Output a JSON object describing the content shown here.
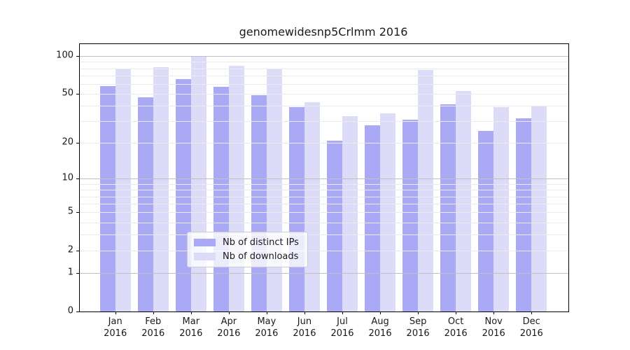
{
  "title": "genomewidesnp5Crlmm 2016",
  "legend": {
    "items": [
      {
        "label": "Nb of distinct IPs",
        "color": "#a9a9f5"
      },
      {
        "label": "Nb of downloads",
        "color": "#dcdcf8"
      }
    ]
  },
  "chart_data": {
    "type": "bar",
    "title": "genomewidesnp5Crlmm 2016",
    "x": {
      "months": [
        "Jan",
        "Feb",
        "Mar",
        "Apr",
        "May",
        "Jun",
        "Jul",
        "Aug",
        "Sep",
        "Oct",
        "Nov",
        "Dec"
      ],
      "year": "2016"
    },
    "series": [
      {
        "name": "Nb of distinct IPs",
        "color": "#a9a9f5",
        "values": [
          58,
          47,
          66,
          57,
          49,
          39,
          21,
          28,
          31,
          41,
          25,
          32
        ]
      },
      {
        "name": "Nb of downloads",
        "color": "#dcdcf8",
        "values": [
          79,
          82,
          100,
          84,
          79,
          43,
          33,
          35,
          77,
          53,
          39,
          40
        ]
      }
    ],
    "yscale": "log1p",
    "ylim": [
      0,
      123
    ],
    "y_ticks": [
      100,
      50,
      20,
      10,
      5,
      2,
      1,
      0
    ],
    "grid": {
      "major": [
        1,
        10,
        100
      ],
      "minor": [
        2,
        3,
        4,
        5,
        6,
        7,
        8,
        9,
        20,
        30,
        40,
        50,
        60,
        70,
        80,
        90
      ]
    },
    "legend_position": "inside-bottom-center",
    "colors": {
      "major_grid": "#c0c0c0",
      "minor_grid": "#ebebeb",
      "axis": "#000000",
      "text": "#1a1a1a"
    }
  }
}
